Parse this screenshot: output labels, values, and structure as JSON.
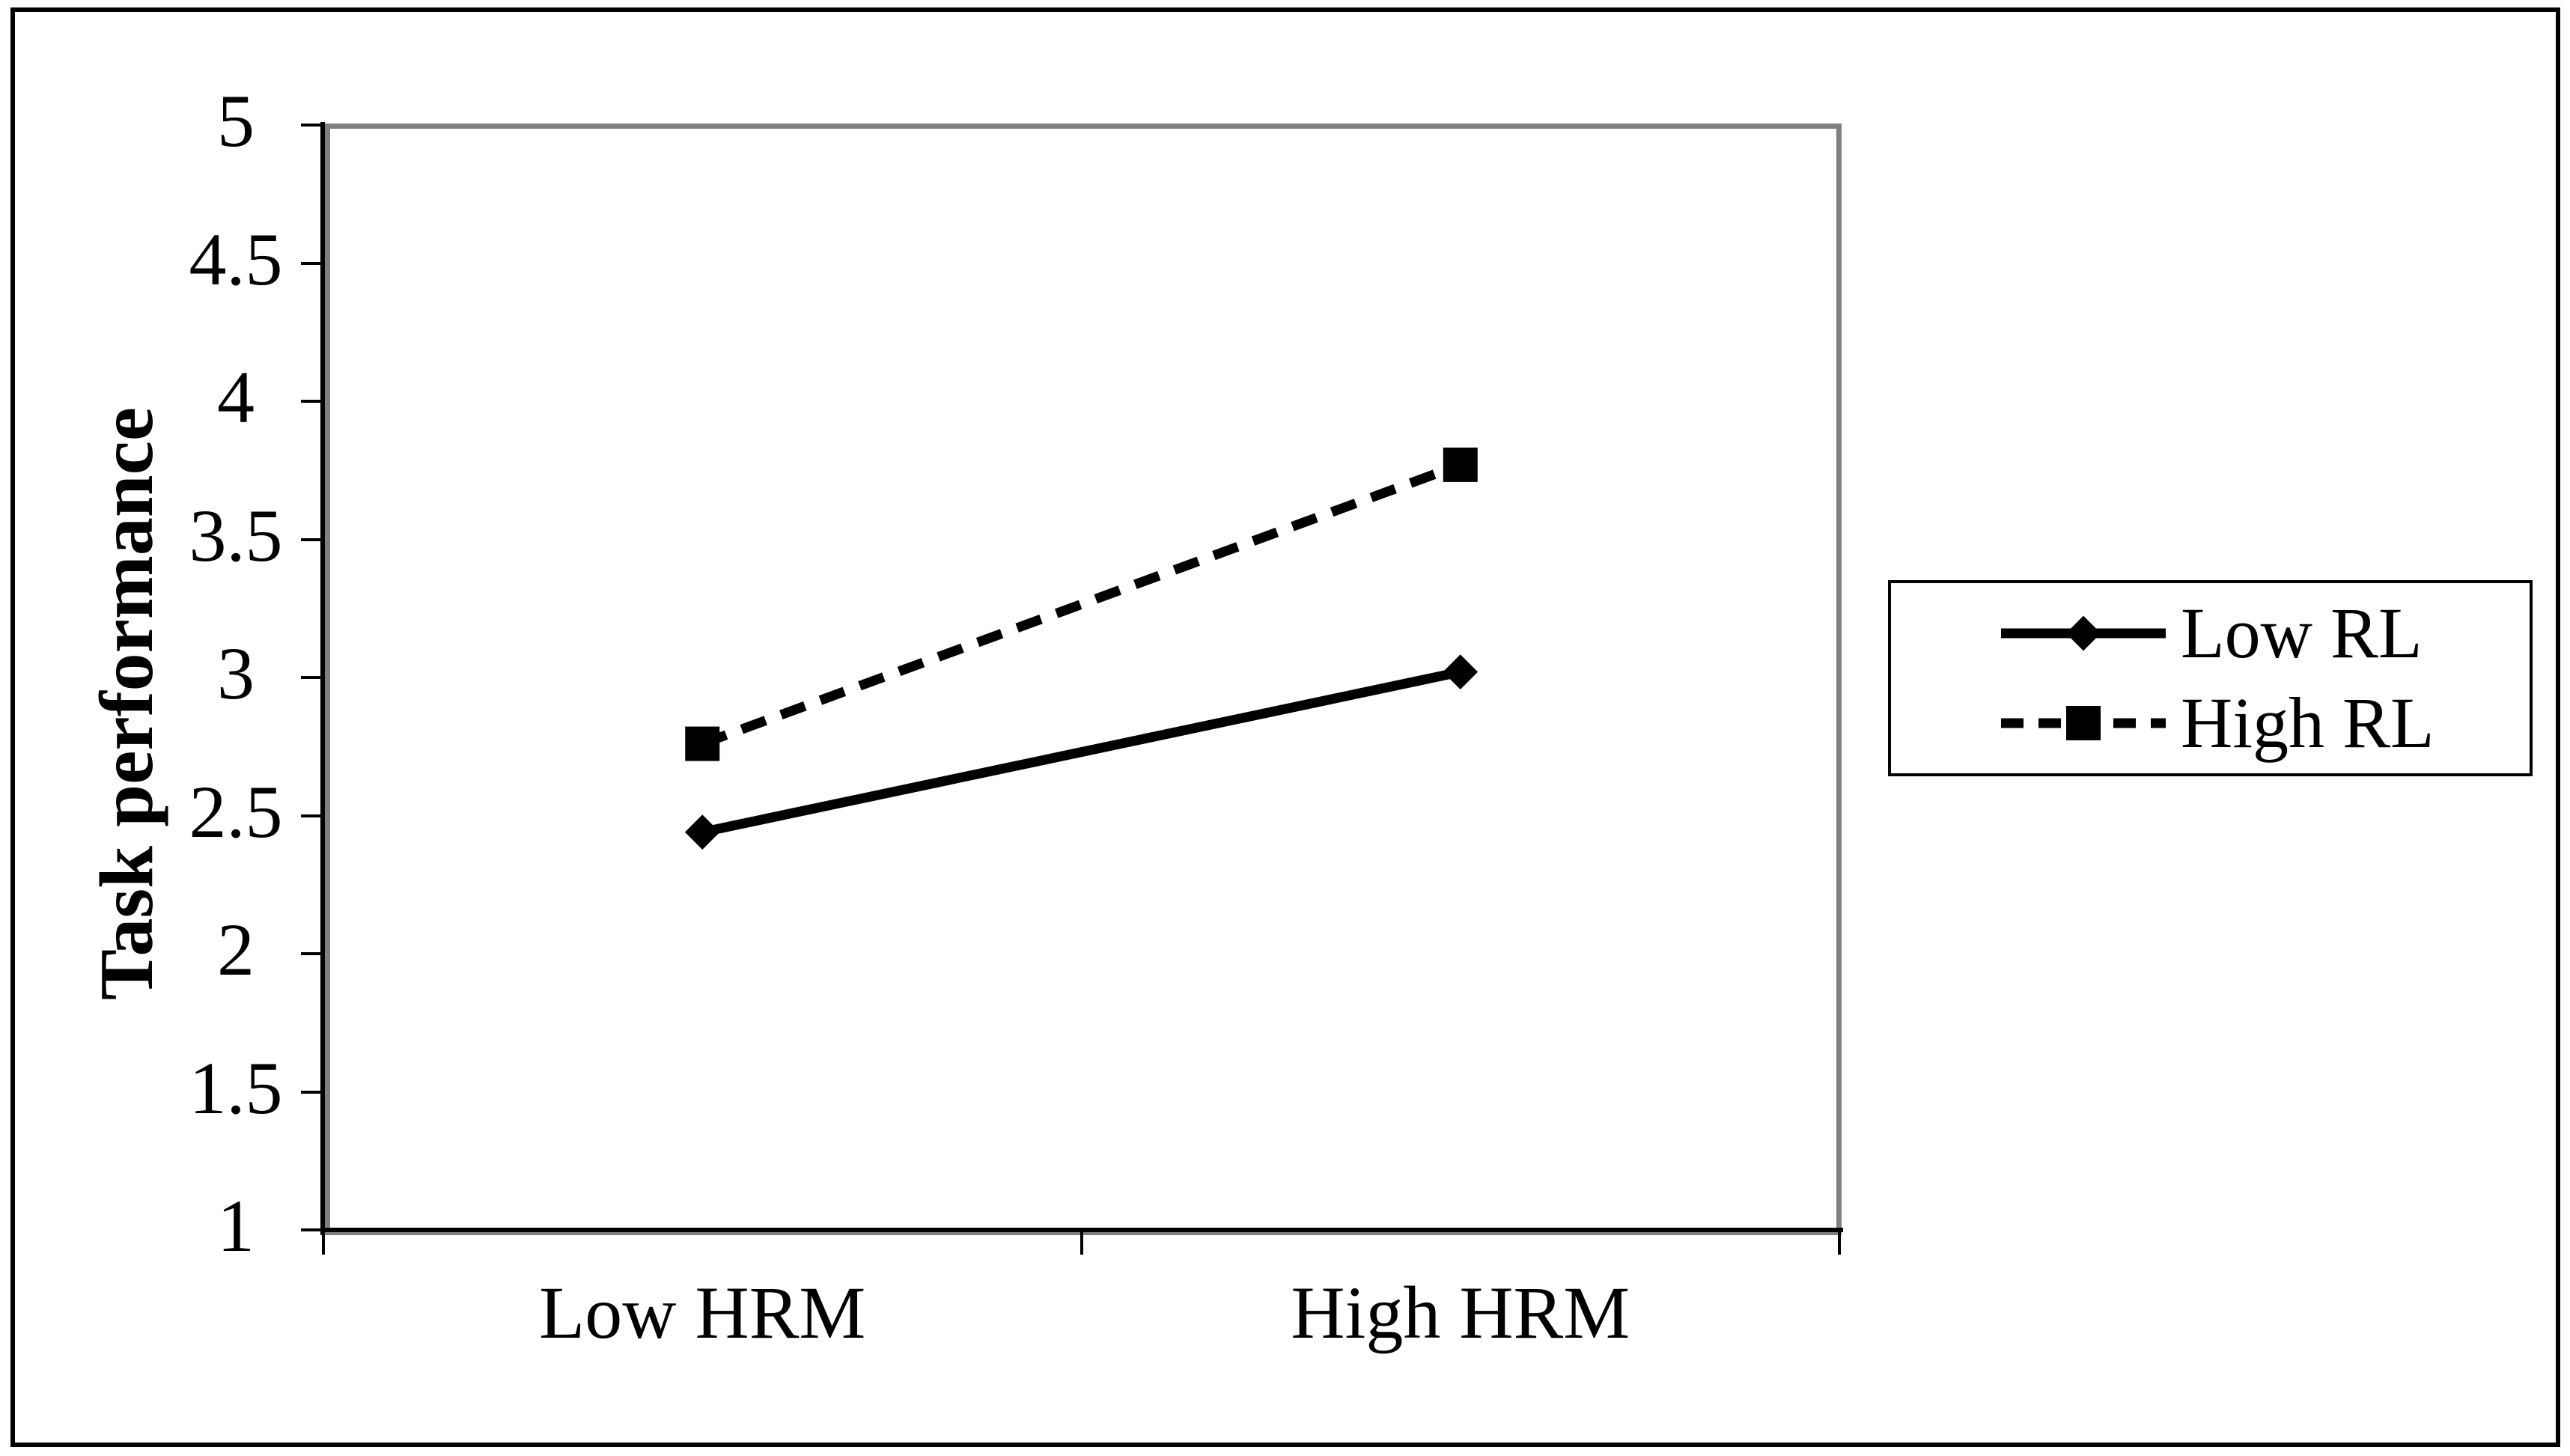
{
  "figure": {
    "background": "#ffffff",
    "outer_border_color": "#000000",
    "plot_frame_color": "#808080",
    "axis_color": "#000000"
  },
  "chart_data": {
    "type": "line",
    "title": "",
    "xlabel": "",
    "ylabel": "Task  performance",
    "categories": [
      "Low HRM",
      "High HRM"
    ],
    "series": [
      {
        "name": "Low RL",
        "values": [
          2.44,
          3.02
        ],
        "line_style": "solid",
        "marker": "diamond",
        "color": "#000000"
      },
      {
        "name": "High RL",
        "values": [
          2.76,
          3.77
        ],
        "line_style": "dashed",
        "marker": "square",
        "color": "#000000"
      }
    ],
    "ylim": [
      1,
      5
    ],
    "ytick_step": 0.5,
    "yticks": [
      "5",
      "4.5",
      "4",
      "3.5",
      "3",
      "2.5",
      "2",
      "1.5",
      "1"
    ],
    "grid": false,
    "legend_position": "right-outside"
  }
}
